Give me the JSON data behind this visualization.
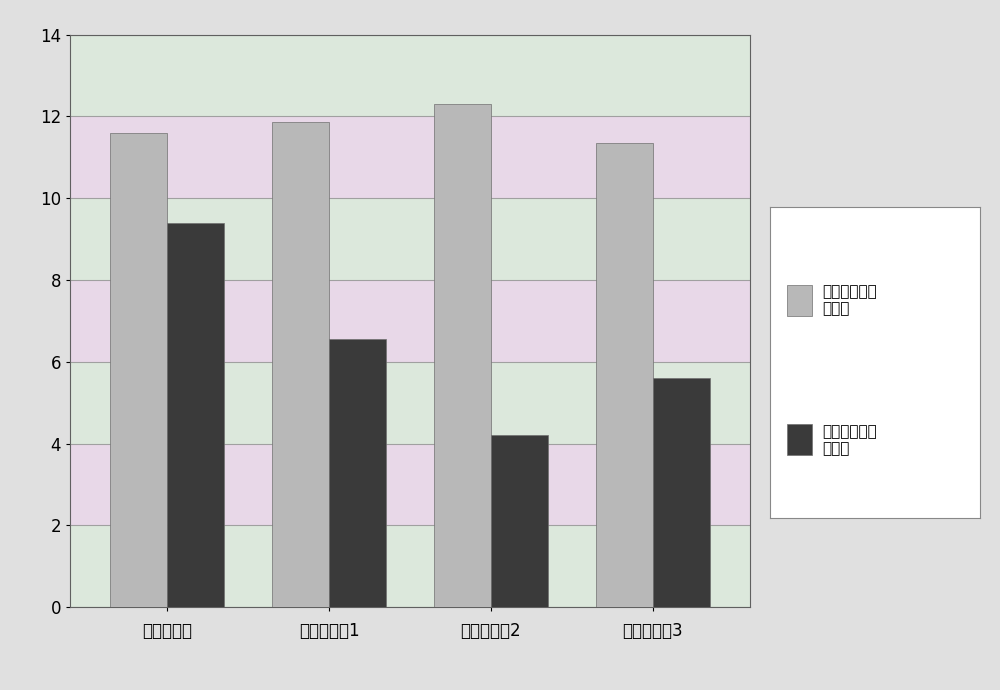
{
  "categories": [
    "普通药物组",
    "发明试验组1",
    "发明试验组2",
    "发明试验组3"
  ],
  "series": [
    {
      "name": "实验前平均血\n糖含量",
      "values": [
        11.6,
        11.85,
        12.3,
        11.35
      ],
      "color": "#b8b8b8"
    },
    {
      "name": "实验后平均血\n糖含量",
      "values": [
        9.4,
        6.55,
        4.2,
        5.6
      ],
      "color": "#3a3a3a"
    }
  ],
  "ylim": [
    0,
    14
  ],
  "yticks": [
    0,
    2,
    4,
    6,
    8,
    10,
    12,
    14
  ],
  "band_colors": [
    "#dce8dc",
    "#e8d8e8"
  ],
  "outer_bg": "#e0e0e0",
  "grid_line_color": "#a0a0a0",
  "bar_width": 0.35,
  "legend_fontsize": 11,
  "tick_fontsize": 12,
  "figure_width": 10.0,
  "figure_height": 6.9
}
